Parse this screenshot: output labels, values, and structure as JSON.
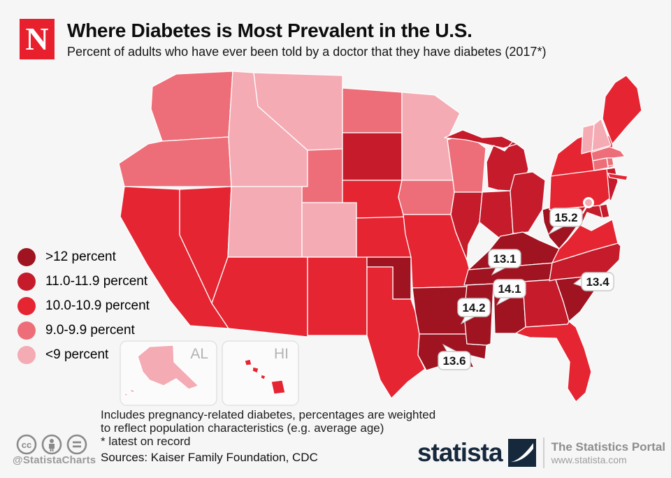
{
  "header": {
    "logo_letter": "N",
    "title": "Where Diabetes is Most Prevalent in the U.S.",
    "subtitle": "Percent of adults who have ever been told by a doctor that they have diabetes (2017*)"
  },
  "chart_data": {
    "type": "heatmap",
    "subtype": "us-state-choropleth",
    "title": "Where Diabetes is Most Prevalent in the U.S.",
    "unit": "percent of adults",
    "year": "2017",
    "legend_position": "left",
    "legend": [
      {
        "key": "cat5",
        "label": ">12 percent",
        "color": "#a01321"
      },
      {
        "key": "cat4",
        "label": "11.0-11.9 percent",
        "color": "#c51b2b"
      },
      {
        "key": "cat3",
        "label": "10.0-10.9 percent",
        "color": "#e52532"
      },
      {
        "key": "cat2",
        "label": "9.0-9.9 percent",
        "color": "#ed6e78"
      },
      {
        "key": "cat1",
        "label": "<9 percent",
        "color": "#f4abb4"
      }
    ],
    "states": [
      {
        "abbr": "WA",
        "name": "Washington",
        "category": "cat2"
      },
      {
        "abbr": "OR",
        "name": "Oregon",
        "category": "cat2"
      },
      {
        "abbr": "CA",
        "name": "California",
        "category": "cat3"
      },
      {
        "abbr": "NV",
        "name": "Nevada",
        "category": "cat3"
      },
      {
        "abbr": "ID",
        "name": "Idaho",
        "category": "cat1"
      },
      {
        "abbr": "MT",
        "name": "Montana",
        "category": "cat1"
      },
      {
        "abbr": "WY",
        "name": "Wyoming",
        "category": "cat2"
      },
      {
        "abbr": "UT",
        "name": "Utah",
        "category": "cat1"
      },
      {
        "abbr": "CO",
        "name": "Colorado",
        "category": "cat1"
      },
      {
        "abbr": "AZ",
        "name": "Arizona",
        "category": "cat3"
      },
      {
        "abbr": "NM",
        "name": "New Mexico",
        "category": "cat3"
      },
      {
        "abbr": "ND",
        "name": "North Dakota",
        "category": "cat2"
      },
      {
        "abbr": "SD",
        "name": "South Dakota",
        "category": "cat4"
      },
      {
        "abbr": "NE",
        "name": "Nebraska",
        "category": "cat3"
      },
      {
        "abbr": "KS",
        "name": "Kansas",
        "category": "cat3"
      },
      {
        "abbr": "OK",
        "name": "Oklahoma",
        "category": "cat5"
      },
      {
        "abbr": "TX",
        "name": "Texas",
        "category": "cat3"
      },
      {
        "abbr": "MN",
        "name": "Minnesota",
        "category": "cat1"
      },
      {
        "abbr": "IA",
        "name": "Iowa",
        "category": "cat2"
      },
      {
        "abbr": "MO",
        "name": "Missouri",
        "category": "cat3"
      },
      {
        "abbr": "AR",
        "name": "Arkansas",
        "category": "cat5"
      },
      {
        "abbr": "LA",
        "name": "Louisiana",
        "category": "cat5"
      },
      {
        "abbr": "WI",
        "name": "Wisconsin",
        "category": "cat2"
      },
      {
        "abbr": "IL",
        "name": "Illinois",
        "category": "cat4"
      },
      {
        "abbr": "MI",
        "name": "Michigan",
        "category": "cat4"
      },
      {
        "abbr": "IN",
        "name": "Indiana",
        "category": "cat4"
      },
      {
        "abbr": "OH",
        "name": "Ohio",
        "category": "cat4"
      },
      {
        "abbr": "KY",
        "name": "Kentucky",
        "category": "cat5"
      },
      {
        "abbr": "TN",
        "name": "Tennessee",
        "category": "cat5"
      },
      {
        "abbr": "MS",
        "name": "Mississippi",
        "category": "cat5"
      },
      {
        "abbr": "AL",
        "name": "Alabama",
        "category": "cat5"
      },
      {
        "abbr": "GA",
        "name": "Georgia",
        "category": "cat4"
      },
      {
        "abbr": "FL",
        "name": "Florida",
        "category": "cat3"
      },
      {
        "abbr": "SC",
        "name": "South Carolina",
        "category": "cat5"
      },
      {
        "abbr": "NC",
        "name": "North Carolina",
        "category": "cat4"
      },
      {
        "abbr": "VA",
        "name": "Virginia",
        "category": "cat3"
      },
      {
        "abbr": "WV",
        "name": "West Virginia",
        "category": "cat5"
      },
      {
        "abbr": "MD",
        "name": "Maryland",
        "category": "cat4"
      },
      {
        "abbr": "DE",
        "name": "Delaware",
        "category": "cat4"
      },
      {
        "abbr": "NJ",
        "name": "New Jersey",
        "category": "cat4"
      },
      {
        "abbr": "PA",
        "name": "Pennsylvania",
        "category": "cat3"
      },
      {
        "abbr": "NY",
        "name": "New York",
        "category": "cat3"
      },
      {
        "abbr": "CT",
        "name": "Connecticut",
        "category": "cat2"
      },
      {
        "abbr": "RI",
        "name": "Rhode Island",
        "category": "cat2"
      },
      {
        "abbr": "MA",
        "name": "Massachusetts",
        "category": "cat2"
      },
      {
        "abbr": "VT",
        "name": "Vermont",
        "category": "cat1"
      },
      {
        "abbr": "NH",
        "name": "New Hampshire",
        "category": "cat1"
      },
      {
        "abbr": "ME",
        "name": "Maine",
        "category": "cat3"
      },
      {
        "abbr": "AK",
        "name": "Alaska",
        "category": "cat1"
      },
      {
        "abbr": "HI",
        "name": "Hawaii",
        "category": "cat3"
      },
      {
        "abbr": "DC",
        "name": "District of Columbia",
        "category": "cat1"
      }
    ],
    "callouts": [
      {
        "state": "WV",
        "value": "15.2"
      },
      {
        "state": "TN",
        "value": "13.1"
      },
      {
        "state": "AL",
        "value": "14.1"
      },
      {
        "state": "MS",
        "value": "14.2"
      },
      {
        "state": "SC",
        "value": "13.4"
      },
      {
        "state": "LA",
        "value": "13.6"
      }
    ],
    "insets": [
      {
        "id": "alaska",
        "label": "AL"
      },
      {
        "id": "hawaii",
        "label": "HI"
      }
    ]
  },
  "footer": {
    "note_line1": "Includes pregnancy-related diabetes, percentages are weighted",
    "note_line2": "to reflect population characteristics (e.g. average age)",
    "note_line3": "* latest on record",
    "sources": "Sources: Kaiser Family Foundation, CDC",
    "handle": "@StatistaCharts"
  },
  "branding": {
    "wordmark": "statista",
    "tagline": "The Statistics Portal",
    "url": "www.statista.com"
  }
}
